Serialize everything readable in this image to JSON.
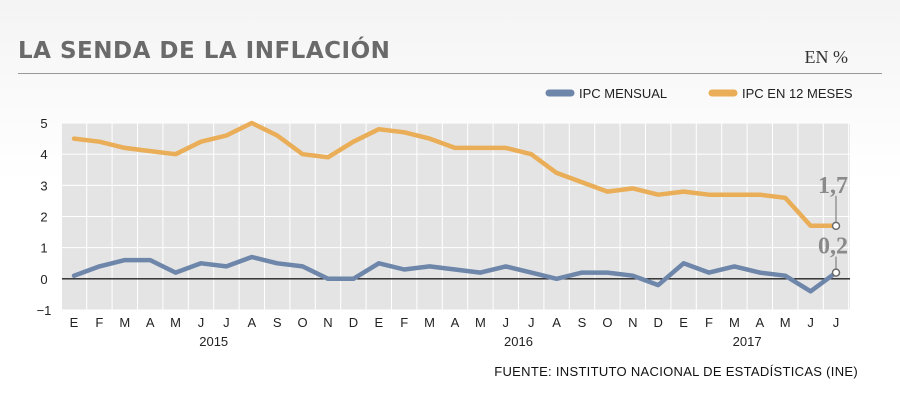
{
  "title": "LA SENDA DE LA INFLACIÓN",
  "unit_label": "EN %",
  "source": "FUENTE: INSTITUTO NACIONAL DE ESTADÍSTICAS (INE)",
  "chart_data": {
    "type": "line",
    "categories": [
      "E",
      "F",
      "M",
      "A",
      "M",
      "J",
      "J",
      "A",
      "S",
      "O",
      "N",
      "D",
      "E",
      "F",
      "M",
      "A",
      "M",
      "J",
      "J",
      "A",
      "S",
      "O",
      "N",
      "D",
      "E",
      "F",
      "M",
      "A",
      "M",
      "J",
      "J"
    ],
    "year_labels": [
      {
        "label": "2015",
        "at_index": 5.5
      },
      {
        "label": "2016",
        "at_index": 17.5
      },
      {
        "label": "2017",
        "at_index": 26.5
      }
    ],
    "yticks": [
      -1,
      0,
      1,
      2,
      3,
      4,
      5
    ],
    "ylim": [
      -1,
      5
    ],
    "grid": true,
    "legend_position": "top-right",
    "series": [
      {
        "name": "IPC MENSUAL",
        "color": "#6d86aa",
        "values": [
          0.1,
          0.4,
          0.6,
          0.6,
          0.2,
          0.5,
          0.4,
          0.7,
          0.5,
          0.4,
          0.0,
          0.0,
          0.5,
          0.3,
          0.4,
          0.3,
          0.2,
          0.4,
          0.2,
          0.0,
          0.2,
          0.2,
          0.1,
          -0.2,
          0.5,
          0.2,
          0.4,
          0.2,
          0.1,
          -0.4,
          0.2
        ],
        "end_label": "0,2"
      },
      {
        "name": "IPC EN 12 MESES",
        "color": "#e9ae57",
        "values": [
          4.5,
          4.4,
          4.2,
          4.1,
          4.0,
          4.4,
          4.6,
          5.0,
          4.6,
          4.0,
          3.9,
          4.4,
          4.8,
          4.7,
          4.5,
          4.2,
          4.2,
          4.2,
          4.0,
          3.4,
          3.1,
          2.8,
          2.9,
          2.7,
          2.8,
          2.7,
          2.7,
          2.7,
          2.6,
          1.7,
          1.7
        ],
        "end_label": "1,7"
      }
    ]
  }
}
